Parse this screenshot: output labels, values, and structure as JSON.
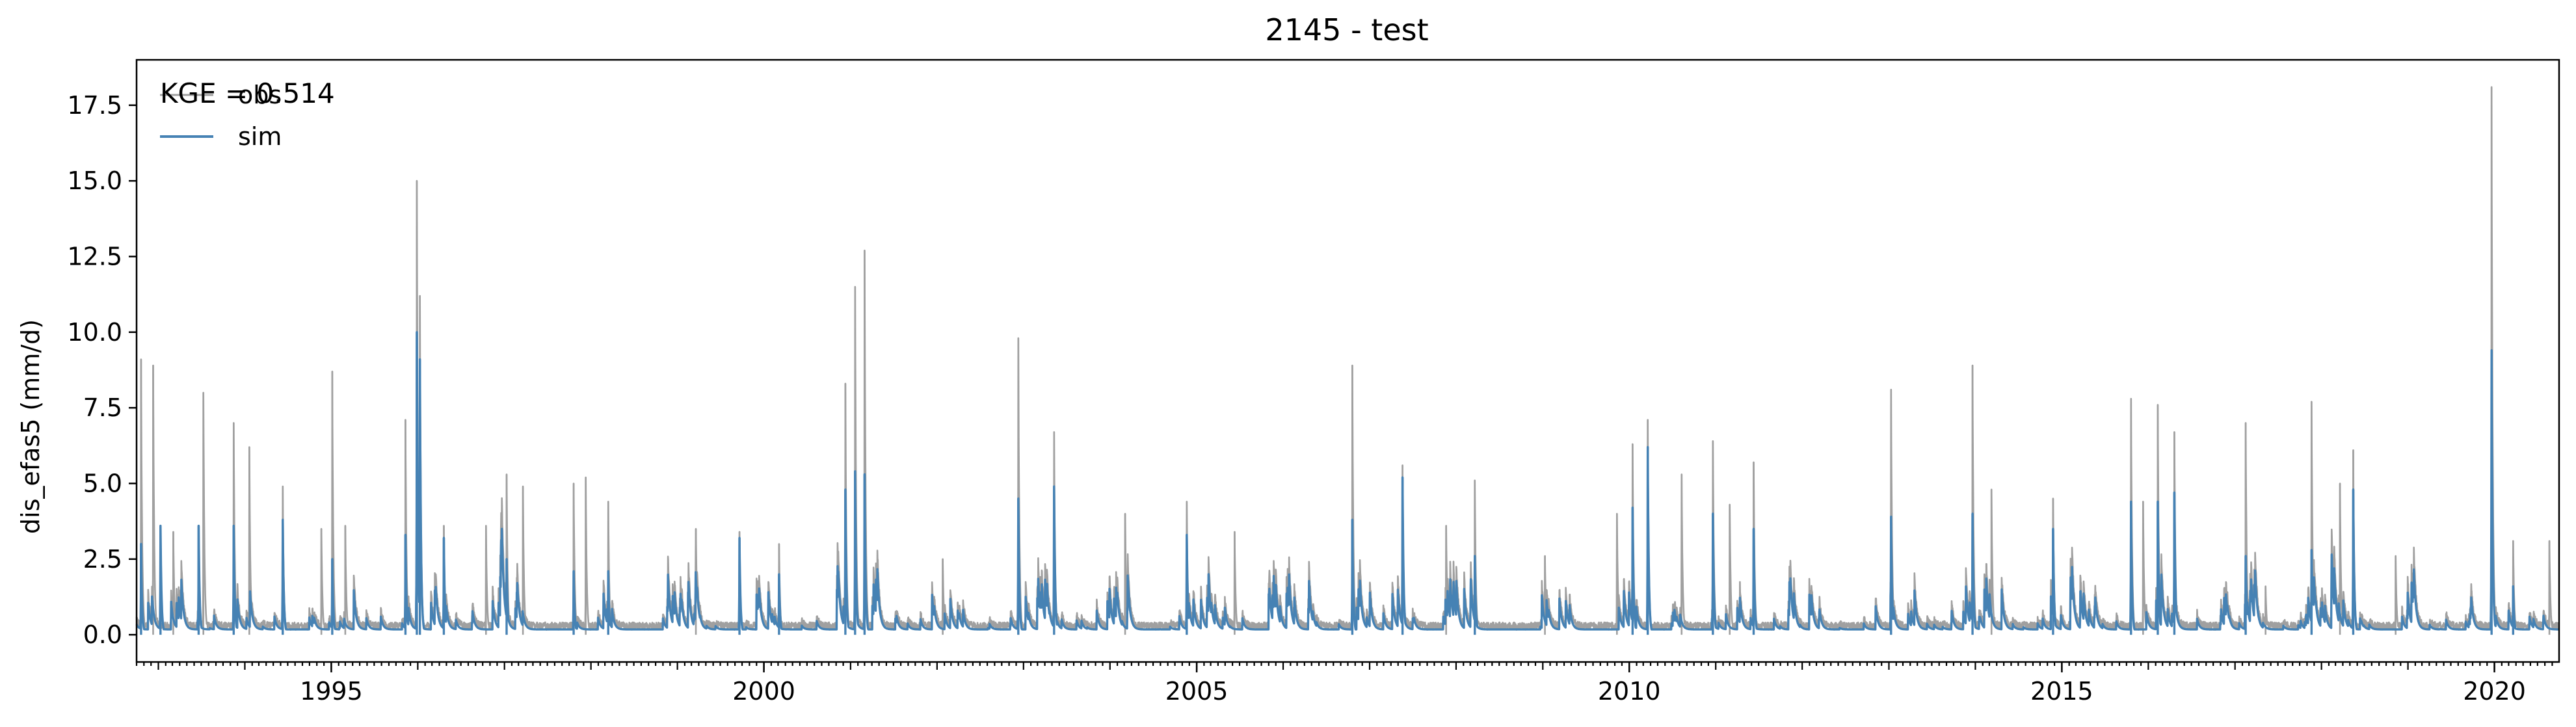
{
  "chart_data": {
    "type": "line",
    "title": "2145 - test",
    "xlabel": "",
    "ylabel": "dis_efas5 (mm/d)",
    "xlim": [
      "1992-10-01",
      "2020-09-30"
    ],
    "ylim": [
      -0.9,
      19.0
    ],
    "yticks": [
      0.0,
      2.5,
      5.0,
      7.5,
      10.0,
      12.5,
      15.0,
      17.5
    ],
    "ytick_labels": [
      "0.0",
      "2.5",
      "5.0",
      "7.5",
      "10.0",
      "12.5",
      "15.0",
      "17.5"
    ],
    "xticks": [
      "1995-01-01",
      "2000-01-01",
      "2005-01-01",
      "2010-01-01",
      "2015-01-01",
      "2020-01-01"
    ],
    "xtick_labels": [
      "1995",
      "2000",
      "2005",
      "2010",
      "2015",
      "2020"
    ],
    "annotation": "KGE = 0.514",
    "legend": {
      "position": "top-left",
      "entries": [
        "obs",
        "sim"
      ]
    },
    "grid": false,
    "series": [
      {
        "name": "obs",
        "color": "#a0a0a0",
        "points": [
          [
            "1992-10-20",
            9.1
          ],
          [
            "1992-12-10",
            8.9
          ],
          [
            "1993-03-05",
            3.4
          ],
          [
            "1993-07-10",
            8.0
          ],
          [
            "1993-11-15",
            7.0
          ],
          [
            "1994-01-20",
            6.2
          ],
          [
            "1994-06-10",
            4.9
          ],
          [
            "1994-11-20",
            3.5
          ],
          [
            "1995-01-05",
            8.7
          ],
          [
            "1995-03-01",
            3.6
          ],
          [
            "1995-11-10",
            7.1
          ],
          [
            "1995-12-28",
            15.0
          ],
          [
            "1996-01-10",
            11.2
          ],
          [
            "1996-04-20",
            3.6
          ],
          [
            "1996-10-15",
            3.6
          ],
          [
            "1997-01-10",
            5.3
          ],
          [
            "1997-03-20",
            4.9
          ],
          [
            "1997-10-20",
            5.0
          ],
          [
            "1997-12-10",
            5.2
          ],
          [
            "1998-03-15",
            4.4
          ],
          [
            "1999-03-20",
            3.5
          ],
          [
            "1999-09-20",
            3.4
          ],
          [
            "2000-03-05",
            3.0
          ],
          [
            "2000-12-10",
            8.3
          ],
          [
            "2001-01-20",
            11.5
          ],
          [
            "2001-03-01",
            12.7
          ],
          [
            "2002-01-25",
            2.5
          ],
          [
            "2002-12-10",
            9.8
          ],
          [
            "2003-05-10",
            6.7
          ],
          [
            "2004-03-05",
            4.0
          ],
          [
            "2004-11-20",
            4.4
          ],
          [
            "2005-06-10",
            3.4
          ],
          [
            "2006-10-20",
            8.9
          ],
          [
            "2007-05-20",
            5.6
          ],
          [
            "2007-11-20",
            3.6
          ],
          [
            "2008-03-20",
            5.1
          ],
          [
            "2009-01-10",
            2.6
          ],
          [
            "2009-11-10",
            4.0
          ],
          [
            "2010-01-15",
            6.3
          ],
          [
            "2010-03-20",
            7.1
          ],
          [
            "2010-08-10",
            5.3
          ],
          [
            "2010-12-20",
            6.4
          ],
          [
            "2011-03-01",
            4.3
          ],
          [
            "2011-06-10",
            5.7
          ],
          [
            "2013-01-10",
            8.1
          ],
          [
            "2013-12-20",
            8.9
          ],
          [
            "2014-03-10",
            4.8
          ],
          [
            "2014-11-25",
            4.5
          ],
          [
            "2015-10-20",
            7.8
          ],
          [
            "2015-12-10",
            4.4
          ],
          [
            "2016-02-10",
            7.6
          ],
          [
            "2016-04-20",
            6.7
          ],
          [
            "2017-02-15",
            7.0
          ],
          [
            "2017-05-10",
            1.6
          ],
          [
            "2017-11-20",
            7.7
          ],
          [
            "2018-03-20",
            5.0
          ],
          [
            "2018-05-15",
            6.1
          ],
          [
            "2018-11-10",
            2.6
          ],
          [
            "2019-12-20",
            18.1
          ],
          [
            "2020-03-20",
            3.1
          ],
          [
            "2020-08-20",
            3.1
          ]
        ]
      },
      {
        "name": "sim",
        "color": "#4682b4",
        "points": [
          [
            "1992-10-20",
            3.0
          ],
          [
            "1993-01-10",
            3.6
          ],
          [
            "1993-06-20",
            3.6
          ],
          [
            "1993-11-15",
            3.6
          ],
          [
            "1994-06-10",
            3.8
          ],
          [
            "1995-01-05",
            2.5
          ],
          [
            "1995-11-10",
            3.3
          ],
          [
            "1995-12-28",
            10.0
          ],
          [
            "1996-01-10",
            9.1
          ],
          [
            "1996-04-20",
            3.2
          ],
          [
            "1997-01-10",
            2.5
          ],
          [
            "1997-10-20",
            2.1
          ],
          [
            "1998-03-15",
            2.1
          ],
          [
            "1999-09-20",
            3.2
          ],
          [
            "2000-03-05",
            2.0
          ],
          [
            "2000-12-10",
            4.8
          ],
          [
            "2001-01-20",
            5.4
          ],
          [
            "2001-03-01",
            5.3
          ],
          [
            "2002-12-10",
            4.5
          ],
          [
            "2003-05-10",
            4.9
          ],
          [
            "2004-11-20",
            3.3
          ],
          [
            "2006-10-20",
            3.8
          ],
          [
            "2007-05-20",
            5.2
          ],
          [
            "2008-03-20",
            2.6
          ],
          [
            "2010-01-15",
            4.2
          ],
          [
            "2010-03-20",
            6.2
          ],
          [
            "2010-12-20",
            4.0
          ],
          [
            "2011-06-10",
            3.5
          ],
          [
            "2013-01-10",
            3.9
          ],
          [
            "2013-12-20",
            4.0
          ],
          [
            "2014-11-25",
            3.5
          ],
          [
            "2015-10-20",
            4.4
          ],
          [
            "2016-02-10",
            4.4
          ],
          [
            "2016-04-20",
            4.7
          ],
          [
            "2017-02-15",
            2.6
          ],
          [
            "2017-11-20",
            2.8
          ],
          [
            "2018-05-15",
            4.8
          ],
          [
            "2019-12-20",
            9.4
          ],
          [
            "2020-03-20",
            1.6
          ]
        ]
      }
    ]
  }
}
